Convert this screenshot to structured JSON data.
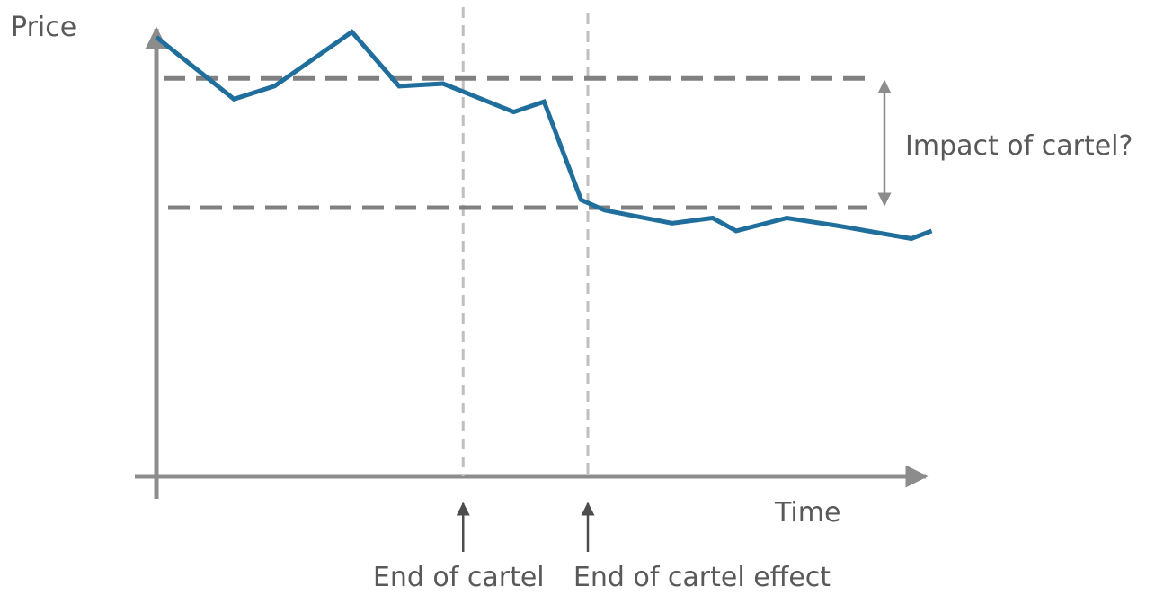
{
  "chart_data": {
    "type": "line",
    "xlabel": "Time",
    "ylabel": "Price",
    "colors": {
      "series": "#1f6e9c",
      "axis": "#8c8c8c",
      "reference_line": "#808080",
      "event_line": "#bfbfbf",
      "text": "#595959"
    },
    "series": [
      {
        "x": [
          0,
          1.15,
          1.75,
          2.9,
          3.6,
          4.25,
          5.3,
          5.75,
          6.3,
          6.65,
          7.65,
          8.25,
          8.6,
          9.35,
          10.1,
          11.2,
          11.5
        ],
        "y": [
          8.5,
          7.3,
          7.55,
          8.6,
          7.55,
          7.6,
          7.05,
          7.25,
          5.35,
          5.15,
          4.9,
          5.0,
          4.75,
          5.0,
          4.85,
          4.6,
          4.75
        ]
      }
    ],
    "reference_lines": [
      {
        "y": 7.7
      },
      {
        "y": 5.2
      }
    ],
    "events": [
      {
        "label": "End of cartel",
        "x": 4.55
      },
      {
        "label": "End of cartel effect",
        "x": 6.4
      }
    ],
    "annotation": {
      "label": "Impact of cartel?"
    }
  }
}
